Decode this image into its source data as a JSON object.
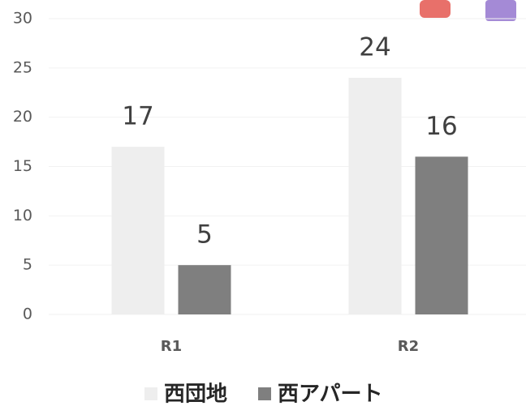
{
  "chart_data": {
    "type": "bar",
    "categories": [
      "R1",
      "R2"
    ],
    "series": [
      {
        "name": "西団地",
        "color": "#eeeeee",
        "values": [
          17,
          24
        ]
      },
      {
        "name": "西アパート",
        "color": "#7f7f7f",
        "values": [
          5,
          16
        ]
      }
    ],
    "ylim": [
      0,
      30
    ],
    "yticks": [
      0,
      5,
      10,
      15,
      20,
      25,
      30
    ],
    "grid": true,
    "data_labels": true,
    "legend": "bottom"
  }
}
